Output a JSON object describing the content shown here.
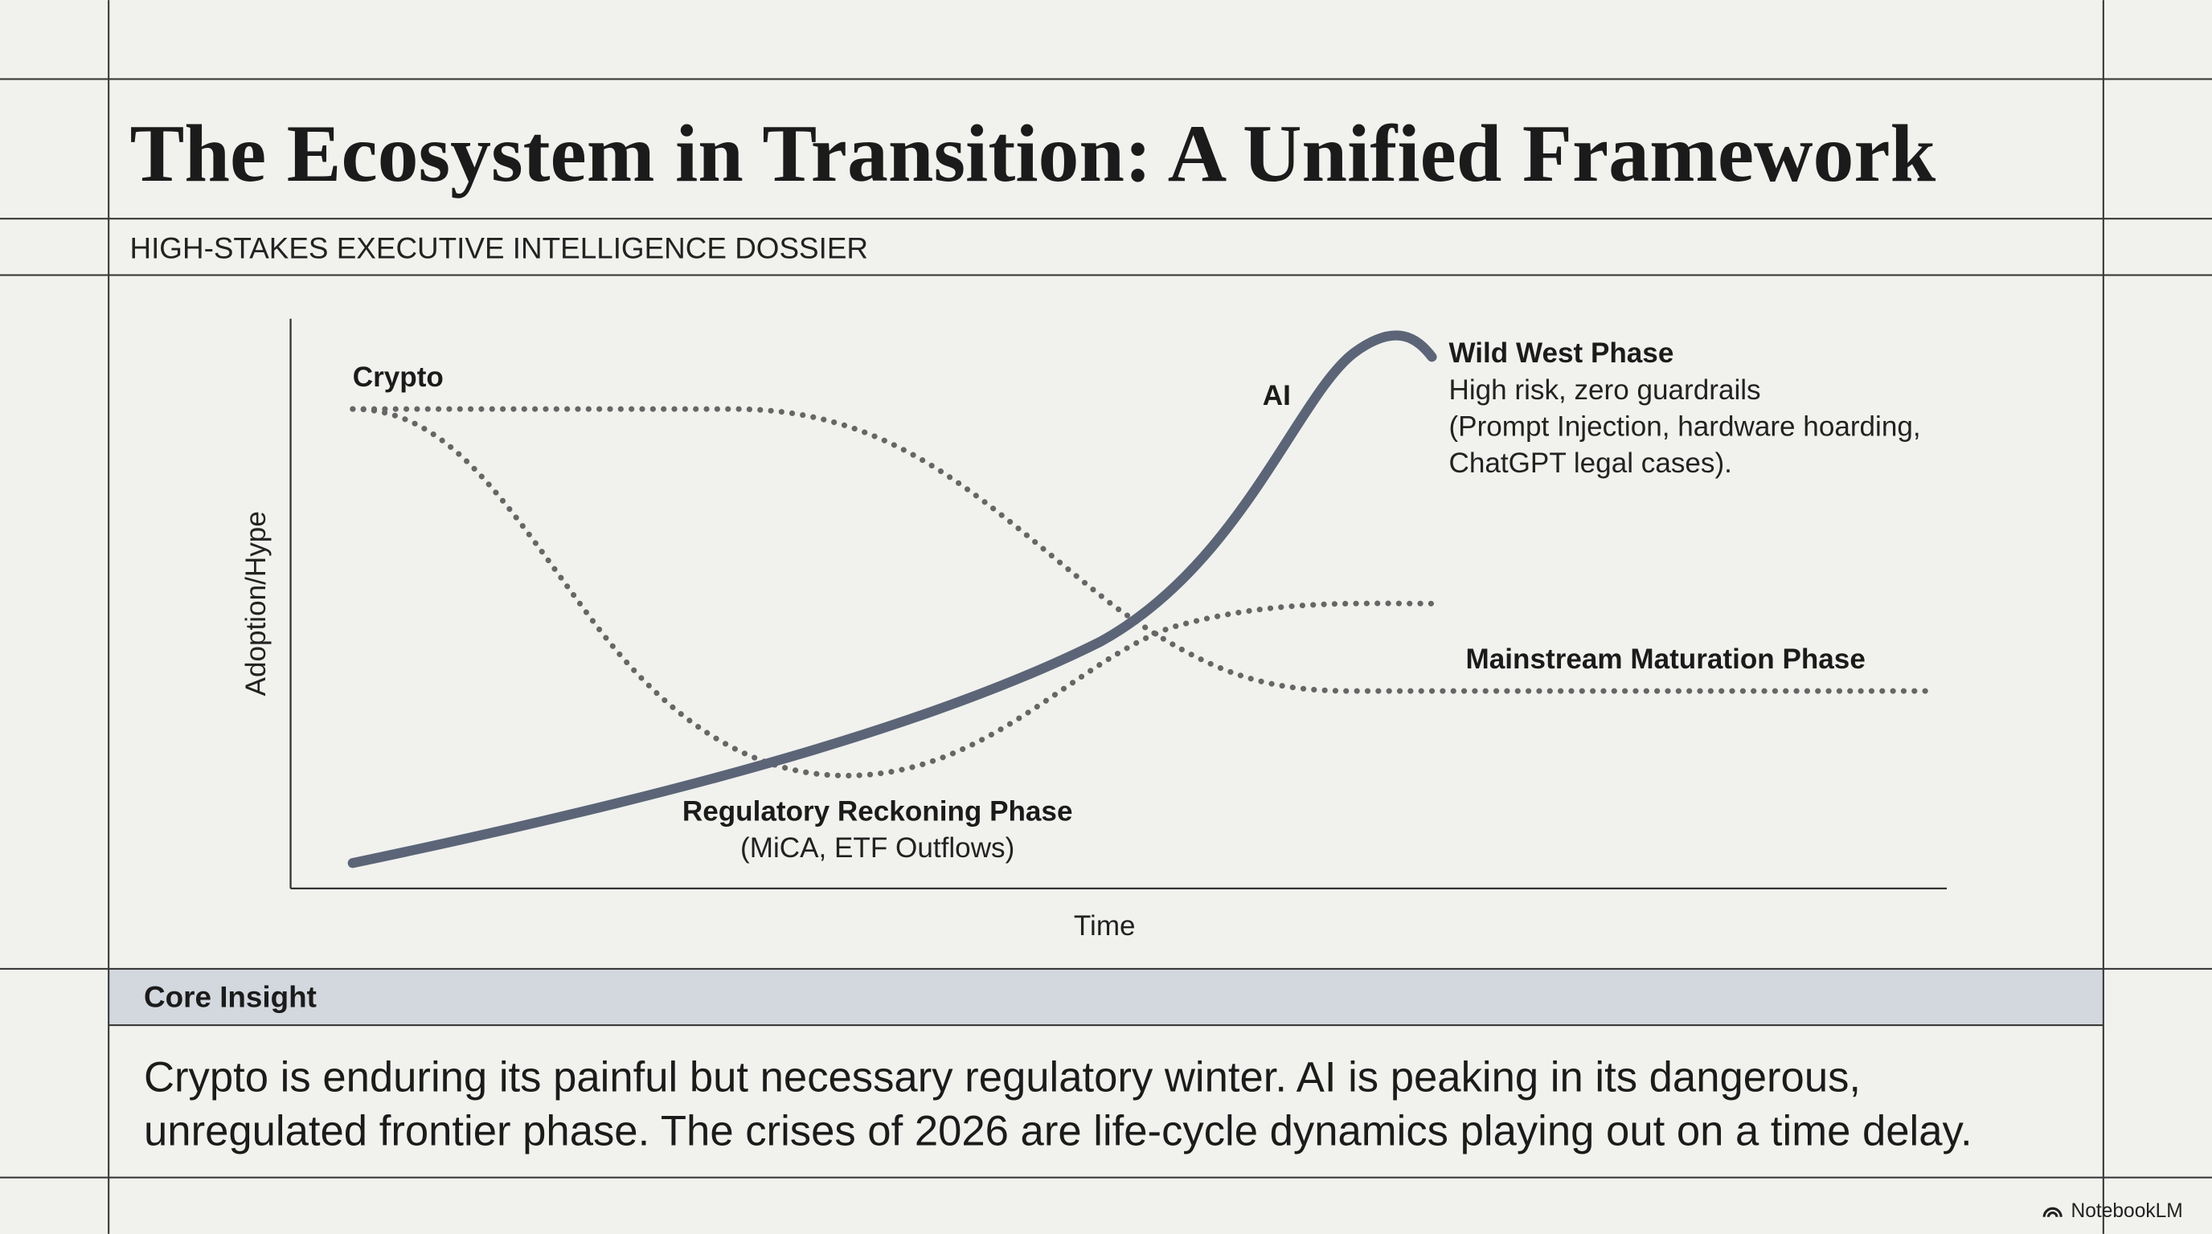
{
  "header": {
    "title": "The Ecosystem in Transition: A Unified Framework",
    "subtitle": "HIGH-STAKES EXECUTIVE INTELLIGENCE DOSSIER"
  },
  "diagram": {
    "y_axis_label": "Adoption/Hype",
    "x_axis_label": "Time",
    "curves": [
      {
        "label": "Crypto"
      },
      {
        "label": "AI"
      }
    ],
    "phases": [
      {
        "title": "Wild West Phase",
        "lines": [
          "High risk, zero guardrails",
          "(Prompt Injection, hardware hoarding,",
          "ChatGPT legal cases)."
        ]
      },
      {
        "title": "Mainstream Maturation Phase"
      },
      {
        "title": "Regulatory Reckoning Phase",
        "lines": [
          "(MiCA, ETF Outflows)"
        ]
      }
    ]
  },
  "insight": {
    "heading": "Core Insight",
    "text": [
      "Crypto is enduring its painful but necessary regulatory winter. AI is peaking in its dangerous,",
      "unregulated frontier phase. The crises of 2026 are life-cycle dynamics playing out on a time delay."
    ]
  },
  "footer": {
    "brand": "NotebookLM"
  }
}
